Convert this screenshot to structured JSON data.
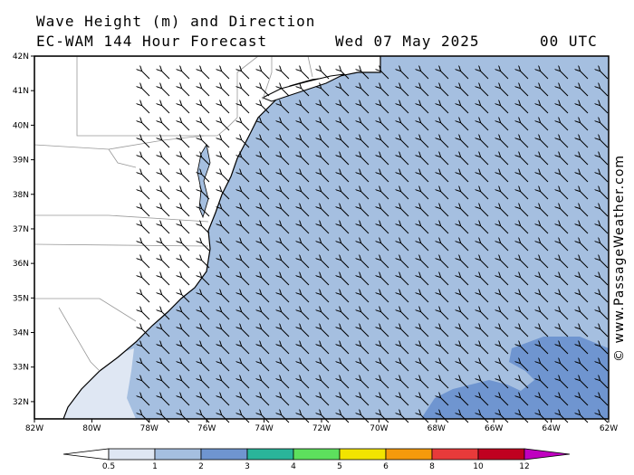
{
  "header": {
    "title": "Wave Height (m) and Direction",
    "model": "EC-WAM 144 Hour Forecast",
    "date": "Wed 07 May 2025",
    "time": "00 UTC"
  },
  "credit": "© www.PassageWeather.com",
  "map": {
    "lat_range": [
      31.5,
      42
    ],
    "lon_range": [
      -82,
      -62
    ],
    "lat_ticks": [
      "42N",
      "41N",
      "40N",
      "39N",
      "38N",
      "37N",
      "36N",
      "35N",
      "34N",
      "33N",
      "32N"
    ],
    "lon_ticks": [
      "82W",
      "80W",
      "78W",
      "76W",
      "74W",
      "72W",
      "70W",
      "68W",
      "66W",
      "64W",
      "62W"
    ],
    "arrow_direction": "northwest",
    "colors": {
      "land": "#ffffff",
      "sea_0_5_1": "#dfe7f3",
      "sea_1_2": "#a5bfe0",
      "sea_2_3": "#6f95d0",
      "coast": "#000000",
      "border": "#999999"
    }
  },
  "legend": {
    "labels": [
      "0.5",
      "1",
      "2",
      "3",
      "4",
      "5",
      "6",
      "8",
      "10",
      "12"
    ],
    "colors": [
      "#ffffff",
      "#dfe7f3",
      "#a5bfe0",
      "#6f95d0",
      "#2ab59a",
      "#5de05d",
      "#f2e400",
      "#f59a0c",
      "#e83a3a",
      "#c00020",
      "#c000c0"
    ]
  }
}
